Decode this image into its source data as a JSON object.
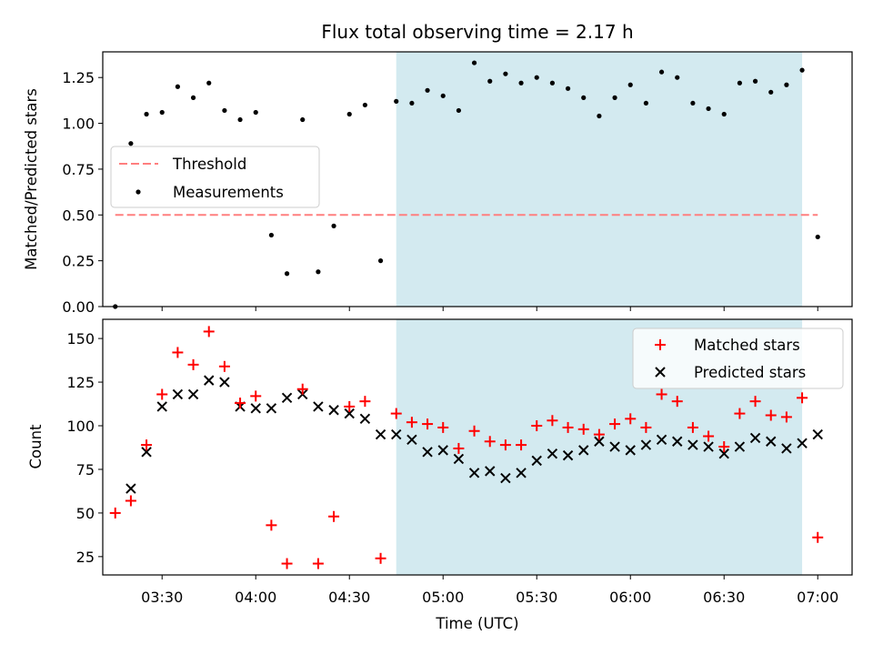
{
  "chart_data": [
    {
      "type": "scatter",
      "title": "Flux total observing time = 2.17 h",
      "ylabel": "Matched/Predicted stars",
      "xlabel": "",
      "xlim": [
        "03:11",
        "07:11"
      ],
      "ylim": [
        0,
        1.39
      ],
      "y_ticks": [
        0.0,
        0.25,
        0.5,
        0.75,
        1.0,
        1.25
      ],
      "y_tick_labels": [
        "0.00",
        "0.25",
        "0.50",
        "0.75",
        "1.00",
        "1.25"
      ],
      "grid": false,
      "legend_position": "center-left",
      "shaded_interval": {
        "start": "04:45",
        "end": "06:55",
        "color": "#d3eaf0"
      },
      "threshold": {
        "name": "Threshold",
        "value": 0.5,
        "x_range": [
          "03:15",
          "07:00"
        ],
        "color": "#ff7f7f"
      },
      "series": [
        {
          "name": "Measurements",
          "marker": "dot",
          "color": "#000000",
          "x": [
            "03:15",
            "03:20",
            "03:25",
            "03:30",
            "03:35",
            "03:40",
            "03:45",
            "03:50",
            "03:55",
            "04:00",
            "04:05",
            "04:10",
            "04:15",
            "04:20",
            "04:25",
            "04:30",
            "04:35",
            "04:40",
            "04:45",
            "04:50",
            "04:55",
            "05:00",
            "05:05",
            "05:10",
            "05:15",
            "05:20",
            "05:25",
            "05:30",
            "05:35",
            "05:40",
            "05:45",
            "05:50",
            "05:55",
            "06:00",
            "06:05",
            "06:10",
            "06:15",
            "06:20",
            "06:25",
            "06:30",
            "06:35",
            "06:40",
            "06:45",
            "06:50",
            "06:55",
            "07:00"
          ],
          "y": [
            0.0,
            0.89,
            1.05,
            1.06,
            1.2,
            1.14,
            1.22,
            1.07,
            1.02,
            1.06,
            0.39,
            0.18,
            1.02,
            0.19,
            0.44,
            1.05,
            1.1,
            0.25,
            1.12,
            1.11,
            1.18,
            1.15,
            1.07,
            1.33,
            1.23,
            1.27,
            1.22,
            1.25,
            1.22,
            1.19,
            1.14,
            1.04,
            1.14,
            1.21,
            1.11,
            1.28,
            1.25,
            1.11,
            1.08,
            1.05,
            1.22,
            1.23,
            1.17,
            1.21,
            1.29,
            0.38
          ]
        }
      ]
    },
    {
      "type": "scatter",
      "title": "",
      "ylabel": "Count",
      "xlabel": "Time (UTC)",
      "xlim": [
        "03:11",
        "07:11"
      ],
      "ylim": [
        14.5,
        161
      ],
      "y_ticks": [
        25,
        50,
        75,
        100,
        125,
        150
      ],
      "y_tick_labels": [
        "25",
        "50",
        "75",
        "100",
        "125",
        "150"
      ],
      "x_ticks": [
        "03:30",
        "04:00",
        "04:30",
        "05:00",
        "05:30",
        "06:00",
        "06:30",
        "07:00"
      ],
      "x_tick_labels": [
        "03:30",
        "04:00",
        "04:30",
        "05:00",
        "05:30",
        "06:00",
        "06:30",
        "07:00"
      ],
      "grid": false,
      "legend_position": "top-right",
      "shaded_interval": {
        "start": "04:45",
        "end": "06:55",
        "color": "#d3eaf0"
      },
      "series": [
        {
          "name": "Matched stars",
          "marker": "plus",
          "color": "#ff0000",
          "x": [
            "03:15",
            "03:20",
            "03:25",
            "03:30",
            "03:35",
            "03:40",
            "03:45",
            "03:50",
            "03:55",
            "04:00",
            "04:05",
            "04:10",
            "04:15",
            "04:20",
            "04:25",
            "04:30",
            "04:35",
            "04:40",
            "04:45",
            "04:50",
            "04:55",
            "05:00",
            "05:05",
            "05:10",
            "05:15",
            "05:20",
            "05:25",
            "05:30",
            "05:35",
            "05:40",
            "05:45",
            "05:50",
            "05:55",
            "06:00",
            "06:05",
            "06:10",
            "06:15",
            "06:20",
            "06:25",
            "06:30",
            "06:35",
            "06:40",
            "06:45",
            "06:50",
            "06:55",
            "07:00"
          ],
          "y": [
            50,
            57,
            89,
            118,
            142,
            135,
            154,
            134,
            113,
            117,
            43,
            21,
            121,
            21,
            48,
            111,
            114,
            24,
            107,
            102,
            101,
            99,
            87,
            97,
            91,
            89,
            89,
            100,
            103,
            99,
            98,
            95,
            101,
            104,
            99,
            118,
            114,
            99,
            94,
            88,
            107,
            114,
            106,
            105,
            116,
            36
          ]
        },
        {
          "name": "Predicted stars",
          "marker": "x",
          "color": "#000000",
          "x": [
            "03:15",
            "03:20",
            "03:25",
            "03:30",
            "03:35",
            "03:40",
            "03:45",
            "03:50",
            "03:55",
            "04:00",
            "04:05",
            "04:10",
            "04:15",
            "04:20",
            "04:25",
            "04:30",
            "04:35",
            "04:40",
            "04:45",
            "04:50",
            "04:55",
            "05:00",
            "05:05",
            "05:10",
            "05:15",
            "05:20",
            "05:25",
            "05:30",
            "05:35",
            "05:40",
            "05:45",
            "05:50",
            "05:55",
            "06:00",
            "06:05",
            "06:10",
            "06:15",
            "06:20",
            "06:25",
            "06:30",
            "06:35",
            "06:40",
            "06:45",
            "06:50",
            "06:55",
            "07:00"
          ],
          "y": [
            null,
            64,
            85,
            111,
            118,
            118,
            126,
            125,
            111,
            110,
            110,
            116,
            118,
            111,
            109,
            107,
            104,
            95,
            95,
            92,
            85,
            86,
            81,
            73,
            74,
            70,
            73,
            80,
            84,
            83,
            86,
            91,
            88,
            86,
            89,
            92,
            91,
            89,
            88,
            84,
            88,
            93,
            91,
            87,
            90,
            95
          ]
        }
      ]
    }
  ]
}
